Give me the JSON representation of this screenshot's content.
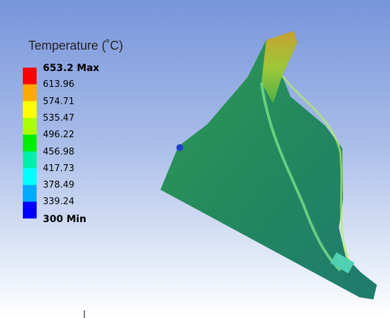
{
  "legend": {
    "title": "Temperature (˚C)",
    "labels": [
      "653.2 Max",
      "613.96",
      "574.71",
      "535.47",
      "496.22",
      "456.98",
      "417.73",
      "378.49",
      "339.24",
      "300 Min"
    ]
  }
}
